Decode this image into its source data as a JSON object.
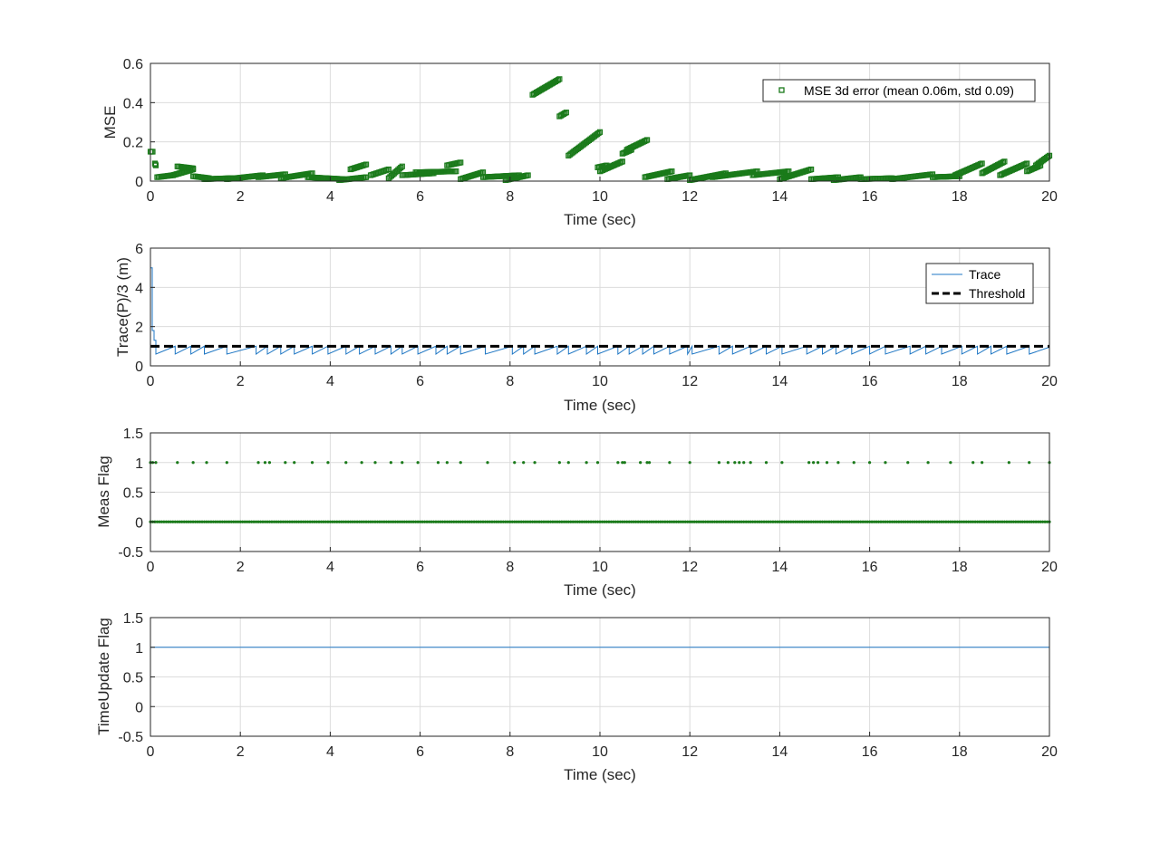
{
  "colors": {
    "mse_marker": "#1a7a1a",
    "trace_line": "#1f77c4",
    "threshold_line": "#000000",
    "meas_marker": "#1a7a1a",
    "timeupdate_line": "#1f77c4",
    "grid": "#dcdcdc"
  },
  "chart_data": [
    {
      "type": "scatter",
      "xlabel": "Time (sec)",
      "ylabel": "MSE",
      "xlim": [
        0,
        20
      ],
      "ylim": [
        0,
        0.6
      ],
      "xticks": [
        "0",
        "2",
        "4",
        "6",
        "8",
        "10",
        "12",
        "14",
        "16",
        "18",
        "20"
      ],
      "yticks": [
        "0",
        "0.2",
        "0.4",
        "0.6"
      ],
      "grid": true,
      "legend_position": "top-right",
      "series": [
        {
          "name": "MSE 3d error (mean 0.06m, std 0.09)",
          "marker": "square",
          "segments": [
            [
              [
                0.0,
                0.15
              ],
              [
                0.05,
                0.15
              ]
            ],
            [
              [
                0.1,
                0.09
              ],
              [
                0.12,
                0.08
              ]
            ],
            [
              [
                0.15,
                0.02
              ],
              [
                0.5,
                0.03
              ],
              [
                0.95,
                0.06
              ]
            ],
            [
              [
                0.6,
                0.075
              ],
              [
                0.95,
                0.065
              ]
            ],
            [
              [
                0.95,
                0.025
              ],
              [
                1.3,
                0.015
              ]
            ],
            [
              [
                1.2,
                0.01
              ],
              [
                1.8,
                0.015
              ]
            ],
            [
              [
                1.7,
                0.01
              ],
              [
                2.5,
                0.03
              ]
            ],
            [
              [
                2.4,
                0.02
              ],
              [
                3.0,
                0.035
              ]
            ],
            [
              [
                2.9,
                0.015
              ],
              [
                3.6,
                0.04
              ]
            ],
            [
              [
                3.5,
                0.02
              ],
              [
                4.3,
                0.01
              ]
            ],
            [
              [
                4.2,
                0.005
              ],
              [
                4.8,
                0.02
              ]
            ],
            [
              [
                4.45,
                0.06
              ],
              [
                4.8,
                0.085
              ]
            ],
            [
              [
                4.9,
                0.03
              ],
              [
                5.3,
                0.06
              ]
            ],
            [
              [
                5.3,
                0.015
              ],
              [
                5.6,
                0.075
              ]
            ],
            [
              [
                5.6,
                0.03
              ],
              [
                6.3,
                0.04
              ]
            ],
            [
              [
                5.9,
                0.045
              ],
              [
                6.8,
                0.05
              ]
            ],
            [
              [
                6.6,
                0.08
              ],
              [
                6.9,
                0.095
              ]
            ],
            [
              [
                6.9,
                0.01
              ],
              [
                7.4,
                0.045
              ]
            ],
            [
              [
                7.4,
                0.02
              ],
              [
                8.2,
                0.03
              ]
            ],
            [
              [
                7.9,
                0.005
              ],
              [
                8.4,
                0.03
              ]
            ],
            [
              [
                8.5,
                0.44
              ],
              [
                9.1,
                0.52
              ]
            ],
            [
              [
                9.1,
                0.33
              ],
              [
                9.25,
                0.35
              ]
            ],
            [
              [
                9.3,
                0.13
              ],
              [
                10.0,
                0.25
              ]
            ],
            [
              [
                9.95,
                0.07
              ],
              [
                10.15,
                0.08
              ]
            ],
            [
              [
                10.0,
                0.05
              ],
              [
                10.5,
                0.1
              ]
            ],
            [
              [
                10.5,
                0.14
              ],
              [
                10.7,
                0.16
              ]
            ],
            [
              [
                10.6,
                0.16
              ],
              [
                11.05,
                0.21
              ]
            ],
            [
              [
                11.0,
                0.02
              ],
              [
                11.6,
                0.05
              ]
            ],
            [
              [
                11.5,
                0.01
              ],
              [
                12.0,
                0.03
              ]
            ],
            [
              [
                12.0,
                0.005
              ],
              [
                12.8,
                0.04
              ]
            ],
            [
              [
                12.5,
                0.02
              ],
              [
                13.5,
                0.05
              ]
            ],
            [
              [
                13.4,
                0.03
              ],
              [
                14.2,
                0.05
              ]
            ],
            [
              [
                14.0,
                0.01
              ],
              [
                14.7,
                0.06
              ]
            ],
            [
              [
                14.7,
                0.01
              ],
              [
                15.3,
                0.02
              ]
            ],
            [
              [
                15.2,
                0.005
              ],
              [
                15.8,
                0.02
              ]
            ],
            [
              [
                15.8,
                0.01
              ],
              [
                16.5,
                0.015
              ]
            ],
            [
              [
                16.5,
                0.01
              ],
              [
                17.4,
                0.035
              ]
            ],
            [
              [
                17.4,
                0.02
              ],
              [
                18.0,
                0.025
              ]
            ],
            [
              [
                17.9,
                0.03
              ],
              [
                18.5,
                0.09
              ]
            ],
            [
              [
                18.5,
                0.04
              ],
              [
                19.0,
                0.1
              ]
            ],
            [
              [
                18.9,
                0.03
              ],
              [
                19.5,
                0.09
              ]
            ],
            [
              [
                19.5,
                0.05
              ],
              [
                19.8,
                0.08
              ]
            ],
            [
              [
                19.7,
                0.08
              ],
              [
                20.0,
                0.13
              ]
            ]
          ]
        }
      ]
    },
    {
      "type": "line",
      "xlabel": "Time (sec)",
      "ylabel": "Trace(P)/3 (m)",
      "xlim": [
        0,
        20
      ],
      "ylim": [
        0,
        6
      ],
      "xticks": [
        "0",
        "2",
        "4",
        "6",
        "8",
        "10",
        "12",
        "14",
        "16",
        "18",
        "20"
      ],
      "yticks": [
        "0",
        "2",
        "4",
        "6"
      ],
      "grid": true,
      "legend_position": "top-right",
      "series": [
        {
          "name": "Trace",
          "style": "solid",
          "initial": [
            [
              0.0,
              5.0
            ],
            [
              0.04,
              5.0
            ],
            [
              0.04,
              1.8
            ],
            [
              0.08,
              1.8
            ],
            [
              0.08,
              1.3
            ],
            [
              0.12,
              1.3
            ],
            [
              0.12,
              0.6
            ]
          ],
          "reset_times": [
            0.55,
            0.9,
            1.2,
            1.7,
            2.35,
            2.6,
            2.9,
            3.2,
            3.6,
            3.95,
            4.35,
            4.65,
            5.0,
            5.35,
            5.6,
            5.95,
            6.35,
            6.6,
            6.9,
            7.45,
            8.05,
            8.3,
            8.55,
            9.05,
            9.3,
            9.7,
            9.95,
            10.4,
            10.65,
            10.95,
            11.2,
            11.55,
            11.95,
            12.05,
            12.65,
            12.95,
            13.35,
            13.7,
            14.05,
            14.6,
            14.95,
            15.25,
            15.6,
            16.0,
            16.35,
            16.9,
            17.25,
            17.6,
            18.05,
            18.4,
            18.7,
            19.05,
            19.55
          ],
          "low": 0.6,
          "high": 1.0
        },
        {
          "name": "Threshold",
          "style": "dashed",
          "x": [
            0,
            20
          ],
          "y": [
            1,
            1
          ]
        }
      ]
    },
    {
      "type": "scatter",
      "xlabel": "Time (sec)",
      "ylabel": "Meas Flag",
      "xlim": [
        0,
        20
      ],
      "ylim": [
        -0.5,
        1.5
      ],
      "xticks": [
        "0",
        "2",
        "4",
        "6",
        "8",
        "10",
        "12",
        "14",
        "16",
        "18",
        "20"
      ],
      "yticks": [
        "-0.5",
        "0",
        "0.5",
        "1",
        "1.5"
      ],
      "grid": true,
      "series": [
        {
          "marker": "dot",
          "ones_x": [
            0.0,
            0.05,
            0.12,
            0.6,
            0.95,
            1.25,
            1.7,
            2.4,
            2.55,
            2.65,
            3.0,
            3.2,
            3.6,
            3.95,
            4.35,
            4.7,
            5.0,
            5.35,
            5.6,
            5.95,
            6.4,
            6.6,
            6.9,
            7.5,
            8.1,
            8.3,
            8.55,
            9.1,
            9.3,
            9.7,
            9.95,
            10.4,
            10.5,
            10.55,
            10.9,
            11.05,
            11.1,
            11.55,
            12.0,
            12.65,
            12.85,
            13.0,
            13.1,
            13.2,
            13.35,
            13.7,
            14.05,
            14.65,
            14.75,
            14.85,
            15.05,
            15.3,
            15.65,
            16.0,
            16.35,
            16.85,
            17.3,
            17.8,
            18.3,
            18.5,
            19.1,
            19.55,
            20.0
          ],
          "zeros_dt": 0.05,
          "zeros_range": [
            0,
            20
          ]
        }
      ]
    },
    {
      "type": "line",
      "xlabel": "Time (sec)",
      "ylabel": "TimeUpdate Flag",
      "xlim": [
        0,
        20
      ],
      "ylim": [
        -0.5,
        1.5
      ],
      "xticks": [
        "0",
        "2",
        "4",
        "6",
        "8",
        "10",
        "12",
        "14",
        "16",
        "18",
        "20"
      ],
      "yticks": [
        "-0.5",
        "0",
        "0.5",
        "1",
        "1.5"
      ],
      "grid": true,
      "series": [
        {
          "x": [
            0,
            20
          ],
          "y": [
            1,
            1
          ]
        }
      ]
    }
  ]
}
